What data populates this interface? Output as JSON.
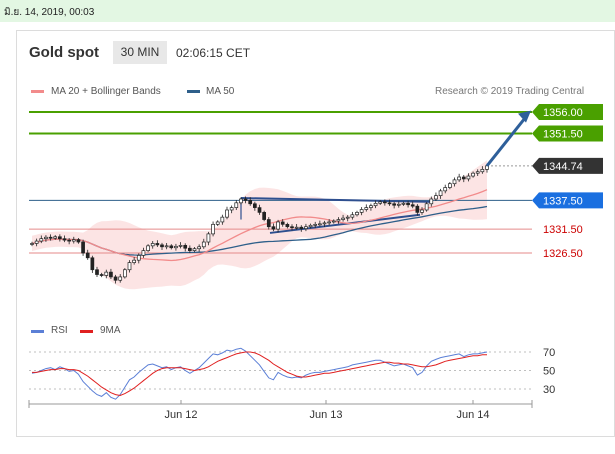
{
  "timestamp": "มิ.ย. 14, 2019, 00:03",
  "header": {
    "title": "Gold spot",
    "timeframe": "30 MIN",
    "time": "02:06:15 CET"
  },
  "legend": {
    "main": [
      {
        "label": "MA 20 + Bollinger Bands",
        "color": "#f28b8b"
      },
      {
        "label": "MA 50",
        "color": "#2e5f8a"
      }
    ],
    "rsi": [
      {
        "label": "RSI",
        "color": "#5b7fd6"
      },
      {
        "label": "9MA",
        "color": "#e02020"
      }
    ]
  },
  "credit": "Research © 2019 Trading Central",
  "chart_data": [
    {
      "type": "candlestick",
      "title": "Gold spot",
      "x_labels": [
        "Jun 12",
        "Jun 13",
        "Jun 14"
      ],
      "price_range": [
        1318,
        1362
      ],
      "levels": [
        {
          "value": 1356.0,
          "label": "1356.00",
          "kind": "target",
          "color": "#4aa000"
        },
        {
          "value": 1351.5,
          "label": "1351.50",
          "kind": "target",
          "color": "#4aa000"
        },
        {
          "value": 1344.74,
          "label": "1344.74",
          "kind": "last_price",
          "color": "#333333"
        },
        {
          "value": 1337.5,
          "label": "1337.50",
          "kind": "pivot",
          "color": "#1a6fe0"
        },
        {
          "value": 1331.5,
          "label": "1331.50",
          "kind": "support",
          "color": "#cc0000"
        },
        {
          "value": 1326.5,
          "label": "1326.50",
          "kind": "support",
          "color": "#cc0000"
        }
      ],
      "close_series": [
        1328.5,
        1329.0,
        1329.5,
        1329.8,
        1329.6,
        1329.9,
        1329.5,
        1329.2,
        1329.0,
        1329.3,
        1328.8,
        1326.5,
        1325.5,
        1323.0,
        1322.0,
        1321.8,
        1322.5,
        1321.5,
        1320.8,
        1321.5,
        1323.0,
        1324.5,
        1325.0,
        1326.0,
        1327.0,
        1328.0,
        1328.5,
        1328.2,
        1327.8,
        1328.0,
        1327.6,
        1327.9,
        1328.1,
        1327.5,
        1327.0,
        1327.4,
        1327.8,
        1328.8,
        1330.5,
        1332.5,
        1333.0,
        1334.0,
        1335.5,
        1336.0,
        1337.0,
        1337.8,
        1337.5,
        1336.8,
        1336.0,
        1335.0,
        1333.5,
        1332.0,
        1331.5,
        1333.0,
        1332.5,
        1332.0,
        1331.8,
        1331.9,
        1331.6,
        1332.0,
        1332.3,
        1332.5,
        1332.6,
        1332.8,
        1333.0,
        1333.2,
        1333.5,
        1333.8,
        1334.0,
        1334.5,
        1335.0,
        1335.6,
        1336.0,
        1336.4,
        1336.9,
        1337.2,
        1337.0,
        1336.8,
        1336.5,
        1336.7,
        1336.9,
        1336.6,
        1336.3,
        1335.0,
        1335.5,
        1336.8,
        1337.8,
        1338.5,
        1339.5,
        1340.2,
        1341.0,
        1341.8,
        1342.4,
        1342.0,
        1342.6,
        1343.2,
        1343.5,
        1344.0,
        1344.74
      ],
      "rsi": {
        "levels": [
          70,
          50,
          30
        ],
        "range": [
          15,
          82
        ],
        "rsi_series": [
          47,
          48,
          50,
          52,
          53,
          51,
          54,
          52,
          49,
          50,
          46,
          38,
          33,
          28,
          24,
          22,
          26,
          21,
          19,
          24,
          32,
          40,
          43,
          48,
          52,
          56,
          57,
          55,
          53,
          54,
          51,
          53,
          54,
          50,
          47,
          50,
          53,
          58,
          63,
          68,
          67,
          69,
          72,
          71,
          73,
          74,
          71,
          66,
          61,
          56,
          49,
          42,
          40,
          48,
          45,
          43,
          42,
          43,
          42,
          45,
          47,
          48,
          48,
          49,
          50,
          51,
          52,
          53,
          54,
          56,
          57,
          58,
          59,
          60,
          61,
          61,
          59,
          57,
          55,
          56,
          57,
          55,
          53,
          45,
          48,
          55,
          60,
          62,
          64,
          65,
          66,
          67,
          68,
          65,
          67,
          68,
          68,
          69,
          70
        ],
        "ma9_series": [
          48,
          48,
          49,
          50,
          51,
          51,
          52,
          52,
          51,
          51,
          50,
          47,
          44,
          40,
          36,
          32,
          29,
          26,
          24,
          23,
          25,
          28,
          31,
          35,
          39,
          43,
          47,
          50,
          52,
          53,
          53,
          53,
          53,
          52,
          51,
          50,
          51,
          52,
          54,
          57,
          60,
          62,
          64,
          66,
          68,
          69,
          70,
          70,
          69,
          67,
          64,
          61,
          57,
          54,
          51,
          48,
          46,
          44,
          43,
          43,
          44,
          45,
          46,
          47,
          47,
          48,
          49,
          50,
          51,
          52,
          53,
          54,
          55,
          56,
          57,
          58,
          59,
          59,
          58,
          58,
          57,
          57,
          56,
          55,
          54,
          54,
          55,
          56,
          58,
          60,
          61,
          62,
          63,
          64,
          65,
          66,
          66,
          67,
          67
        ]
      }
    }
  ]
}
